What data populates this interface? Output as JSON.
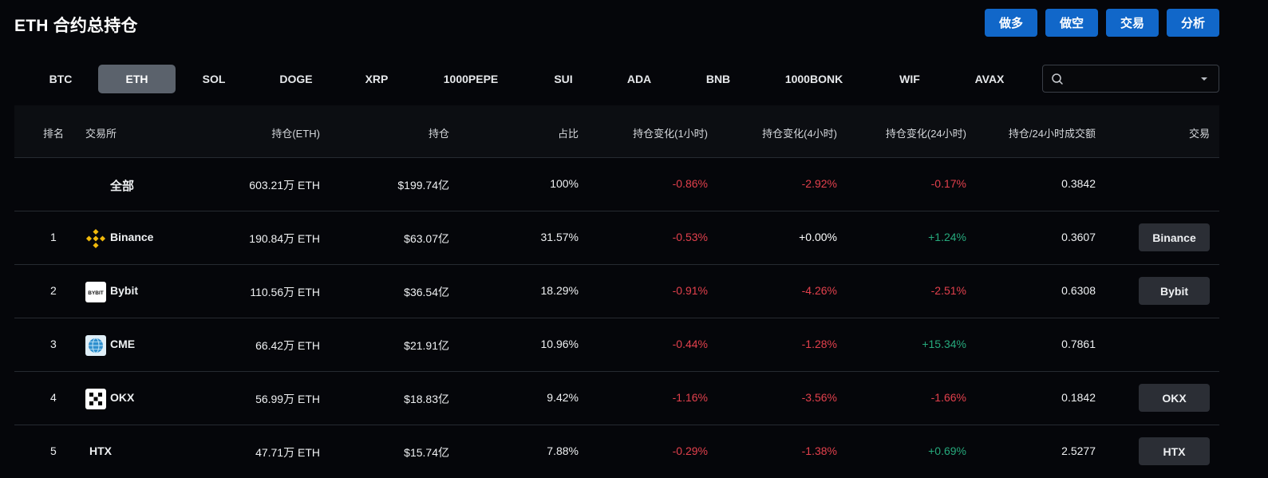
{
  "page": {
    "title": "ETH 合约总持仓"
  },
  "actions": [
    "做多",
    "做空",
    "交易",
    "分析"
  ],
  "tabs": [
    "BTC",
    "ETH",
    "SOL",
    "DOGE",
    "XRP",
    "1000PEPE",
    "SUI",
    "ADA",
    "BNB",
    "1000BONK",
    "WIF",
    "AVAX"
  ],
  "active_tab": "ETH",
  "search": {
    "value": "",
    "placeholder": ""
  },
  "table": {
    "headers": {
      "rank": "排名",
      "exchange": "交易所",
      "holding_coin": "持仓(ETH)",
      "holding": "持仓",
      "share": "占比",
      "change_1h": "持仓变化(1小时)",
      "change_4h": "持仓变化(4小时)",
      "change_24h": "持仓变化(24小时)",
      "ratio": "持仓/24小时成交额",
      "trade": "交易"
    },
    "total": {
      "label": "全部",
      "holding_coin": "603.21万 ETH",
      "holding": "$199.74亿",
      "share": "100%",
      "change_1h": "-0.86%",
      "change_4h": "-2.92%",
      "change_24h": "-0.17%",
      "ratio": "0.3842"
    },
    "rows": [
      {
        "rank": "1",
        "exchange": "Binance",
        "holding_coin": "190.84万 ETH",
        "holding": "$63.07亿",
        "share": "31.57%",
        "change_1h": "-0.53%",
        "change_4h": "+0.00%",
        "change_24h": "+1.24%",
        "ratio": "0.3607",
        "trade": "Binance"
      },
      {
        "rank": "2",
        "exchange": "Bybit",
        "holding_coin": "110.56万 ETH",
        "holding": "$36.54亿",
        "share": "18.29%",
        "change_1h": "-0.91%",
        "change_4h": "-4.26%",
        "change_24h": "-2.51%",
        "ratio": "0.6308",
        "trade": "Bybit"
      },
      {
        "rank": "3",
        "exchange": "CME",
        "holding_coin": "66.42万 ETH",
        "holding": "$21.91亿",
        "share": "10.96%",
        "change_1h": "-0.44%",
        "change_4h": "-1.28%",
        "change_24h": "+15.34%",
        "ratio": "0.7861",
        "trade": ""
      },
      {
        "rank": "4",
        "exchange": "OKX",
        "holding_coin": "56.99万 ETH",
        "holding": "$18.83亿",
        "share": "9.42%",
        "change_1h": "-1.16%",
        "change_4h": "-3.56%",
        "change_24h": "-1.66%",
        "ratio": "0.1842",
        "trade": "OKX"
      },
      {
        "rank": "5",
        "exchange": "HTX",
        "holding_coin": "47.71万 ETH",
        "holding": "$15.74亿",
        "share": "7.88%",
        "change_1h": "-0.29%",
        "change_4h": "-1.38%",
        "change_24h": "+0.69%",
        "ratio": "2.5277",
        "trade": "HTX"
      }
    ]
  },
  "colors": {
    "negative": "#e2404c",
    "positive": "#26a97c",
    "accent": "#1167c9"
  },
  "icons": {
    "binance": "binance-logo-icon",
    "bybit": "bybit-logo-icon",
    "cme": "cme-logo-icon",
    "okx": "okx-logo-icon",
    "search": "search-icon",
    "dropdown": "chevron-down-icon"
  }
}
